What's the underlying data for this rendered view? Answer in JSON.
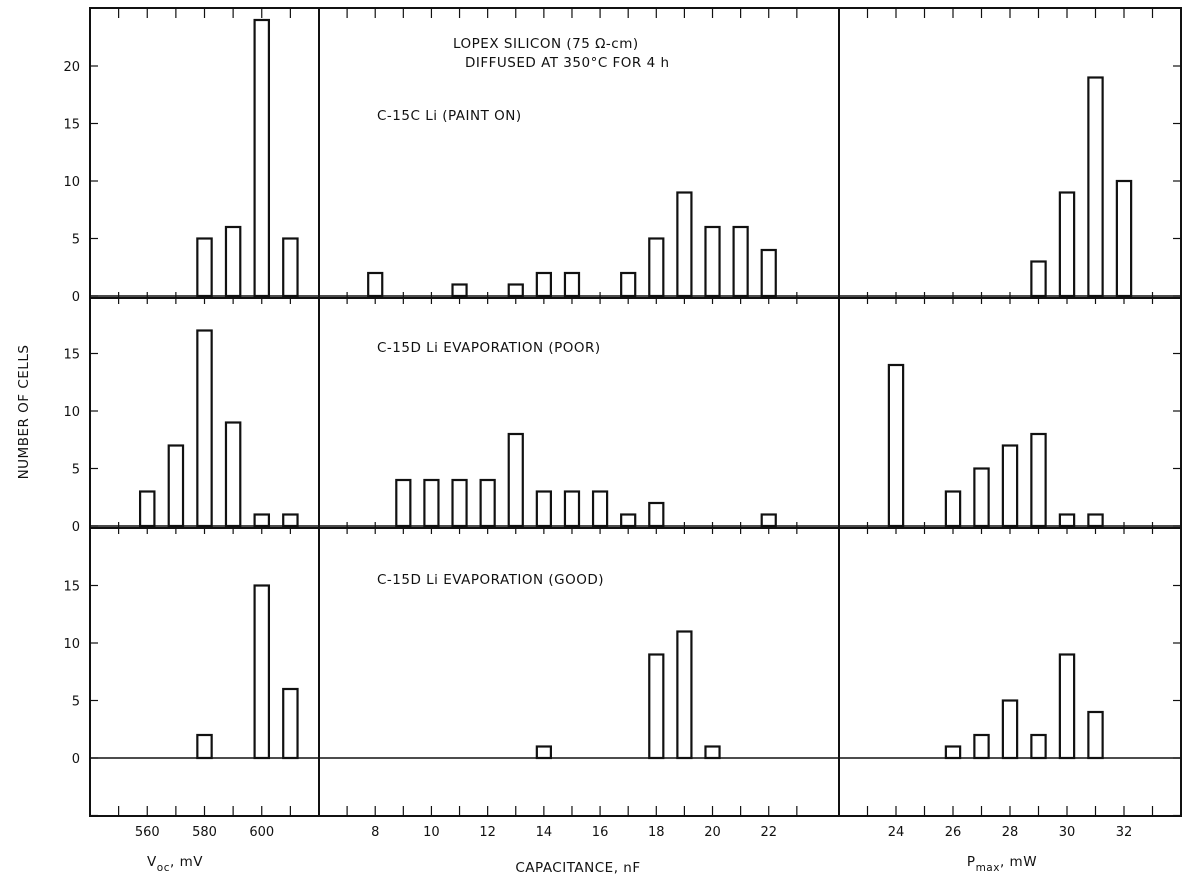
{
  "chart_data": {
    "type": "bar",
    "ylabel": "NUMBER OF CELLS",
    "annotation": {
      "line1": "LOPEX SILICON (75 Ω-cm)",
      "line2": "DIFFUSED AT 350°C FOR 4 h"
    },
    "columns": [
      {
        "xlabel": "V",
        "xlabel_sub": "oc",
        "xlabel_unit": ", mV",
        "xlim": [
          540,
          620
        ],
        "ticks": [
          560,
          580,
          600
        ],
        "minor_ticks": [
          550,
          570,
          590,
          610
        ],
        "bar_width": 5
      },
      {
        "xlabel": "CAPACITANCE, nF",
        "xlim": [
          6,
          24.5
        ],
        "ticks": [
          8,
          10,
          12,
          14,
          16,
          18,
          20,
          22
        ],
        "minor_ticks": [
          7,
          9,
          11,
          13,
          15,
          17,
          19,
          21,
          23
        ],
        "bar_width": 0.5
      },
      {
        "xlabel": "P",
        "xlabel_sub": "max",
        "xlabel_unit": ", mW",
        "xlim": [
          22,
          34
        ],
        "ticks": [
          24,
          26,
          28,
          30,
          32
        ],
        "minor_ticks": [
          23,
          25,
          27,
          29,
          31,
          33
        ],
        "bar_width": 0.5
      }
    ],
    "rows": [
      {
        "label": "C-15C Li (PAINT ON)",
        "ylim": [
          0,
          24
        ],
        "yticks": [
          0,
          5,
          10,
          15,
          20
        ],
        "series": [
          {
            "x": [
              580,
              590,
              600,
              610
            ],
            "values": [
              5,
              6,
              24,
              5
            ]
          },
          {
            "x": [
              8,
              11,
              13,
              14,
              15,
              17,
              18,
              19,
              20,
              21,
              22
            ],
            "values": [
              2,
              1,
              1,
              2,
              2,
              2,
              5,
              9,
              6,
              6,
              4
            ]
          },
          {
            "x": [
              29,
              30,
              31,
              32
            ],
            "values": [
              3,
              9,
              19,
              10
            ]
          }
        ]
      },
      {
        "label": "C-15D Li EVAPORATION (POOR)",
        "ylim": [
          0,
          19
        ],
        "yticks": [
          0,
          5,
          10,
          15
        ],
        "series": [
          {
            "x": [
              560,
              570,
              580,
              590,
              600,
              610
            ],
            "values": [
              3,
              7,
              17,
              9,
              1,
              1
            ]
          },
          {
            "x": [
              9,
              10,
              11,
              12,
              13,
              14,
              15,
              16,
              17,
              18,
              22
            ],
            "values": [
              4,
              4,
              4,
              4,
              8,
              3,
              3,
              3,
              1,
              2,
              1
            ]
          },
          {
            "x": [
              24,
              26,
              27,
              28,
              29,
              30,
              31
            ],
            "values": [
              14,
              3,
              5,
              7,
              8,
              1,
              1
            ]
          }
        ]
      },
      {
        "label": "C-15D Li EVAPORATION (GOOD)",
        "ylim": [
          -5,
          19
        ],
        "yticks": [
          0,
          5,
          10,
          15
        ],
        "series": [
          {
            "x": [
              580,
              600,
              610
            ],
            "values": [
              2,
              15,
              6
            ]
          },
          {
            "x": [
              14,
              18,
              19,
              20
            ],
            "values": [
              1,
              9,
              11,
              1
            ]
          },
          {
            "x": [
              26,
              27,
              28,
              29,
              30,
              31
            ],
            "values": [
              1,
              2,
              5,
              2,
              9,
              4
            ]
          }
        ]
      }
    ]
  }
}
